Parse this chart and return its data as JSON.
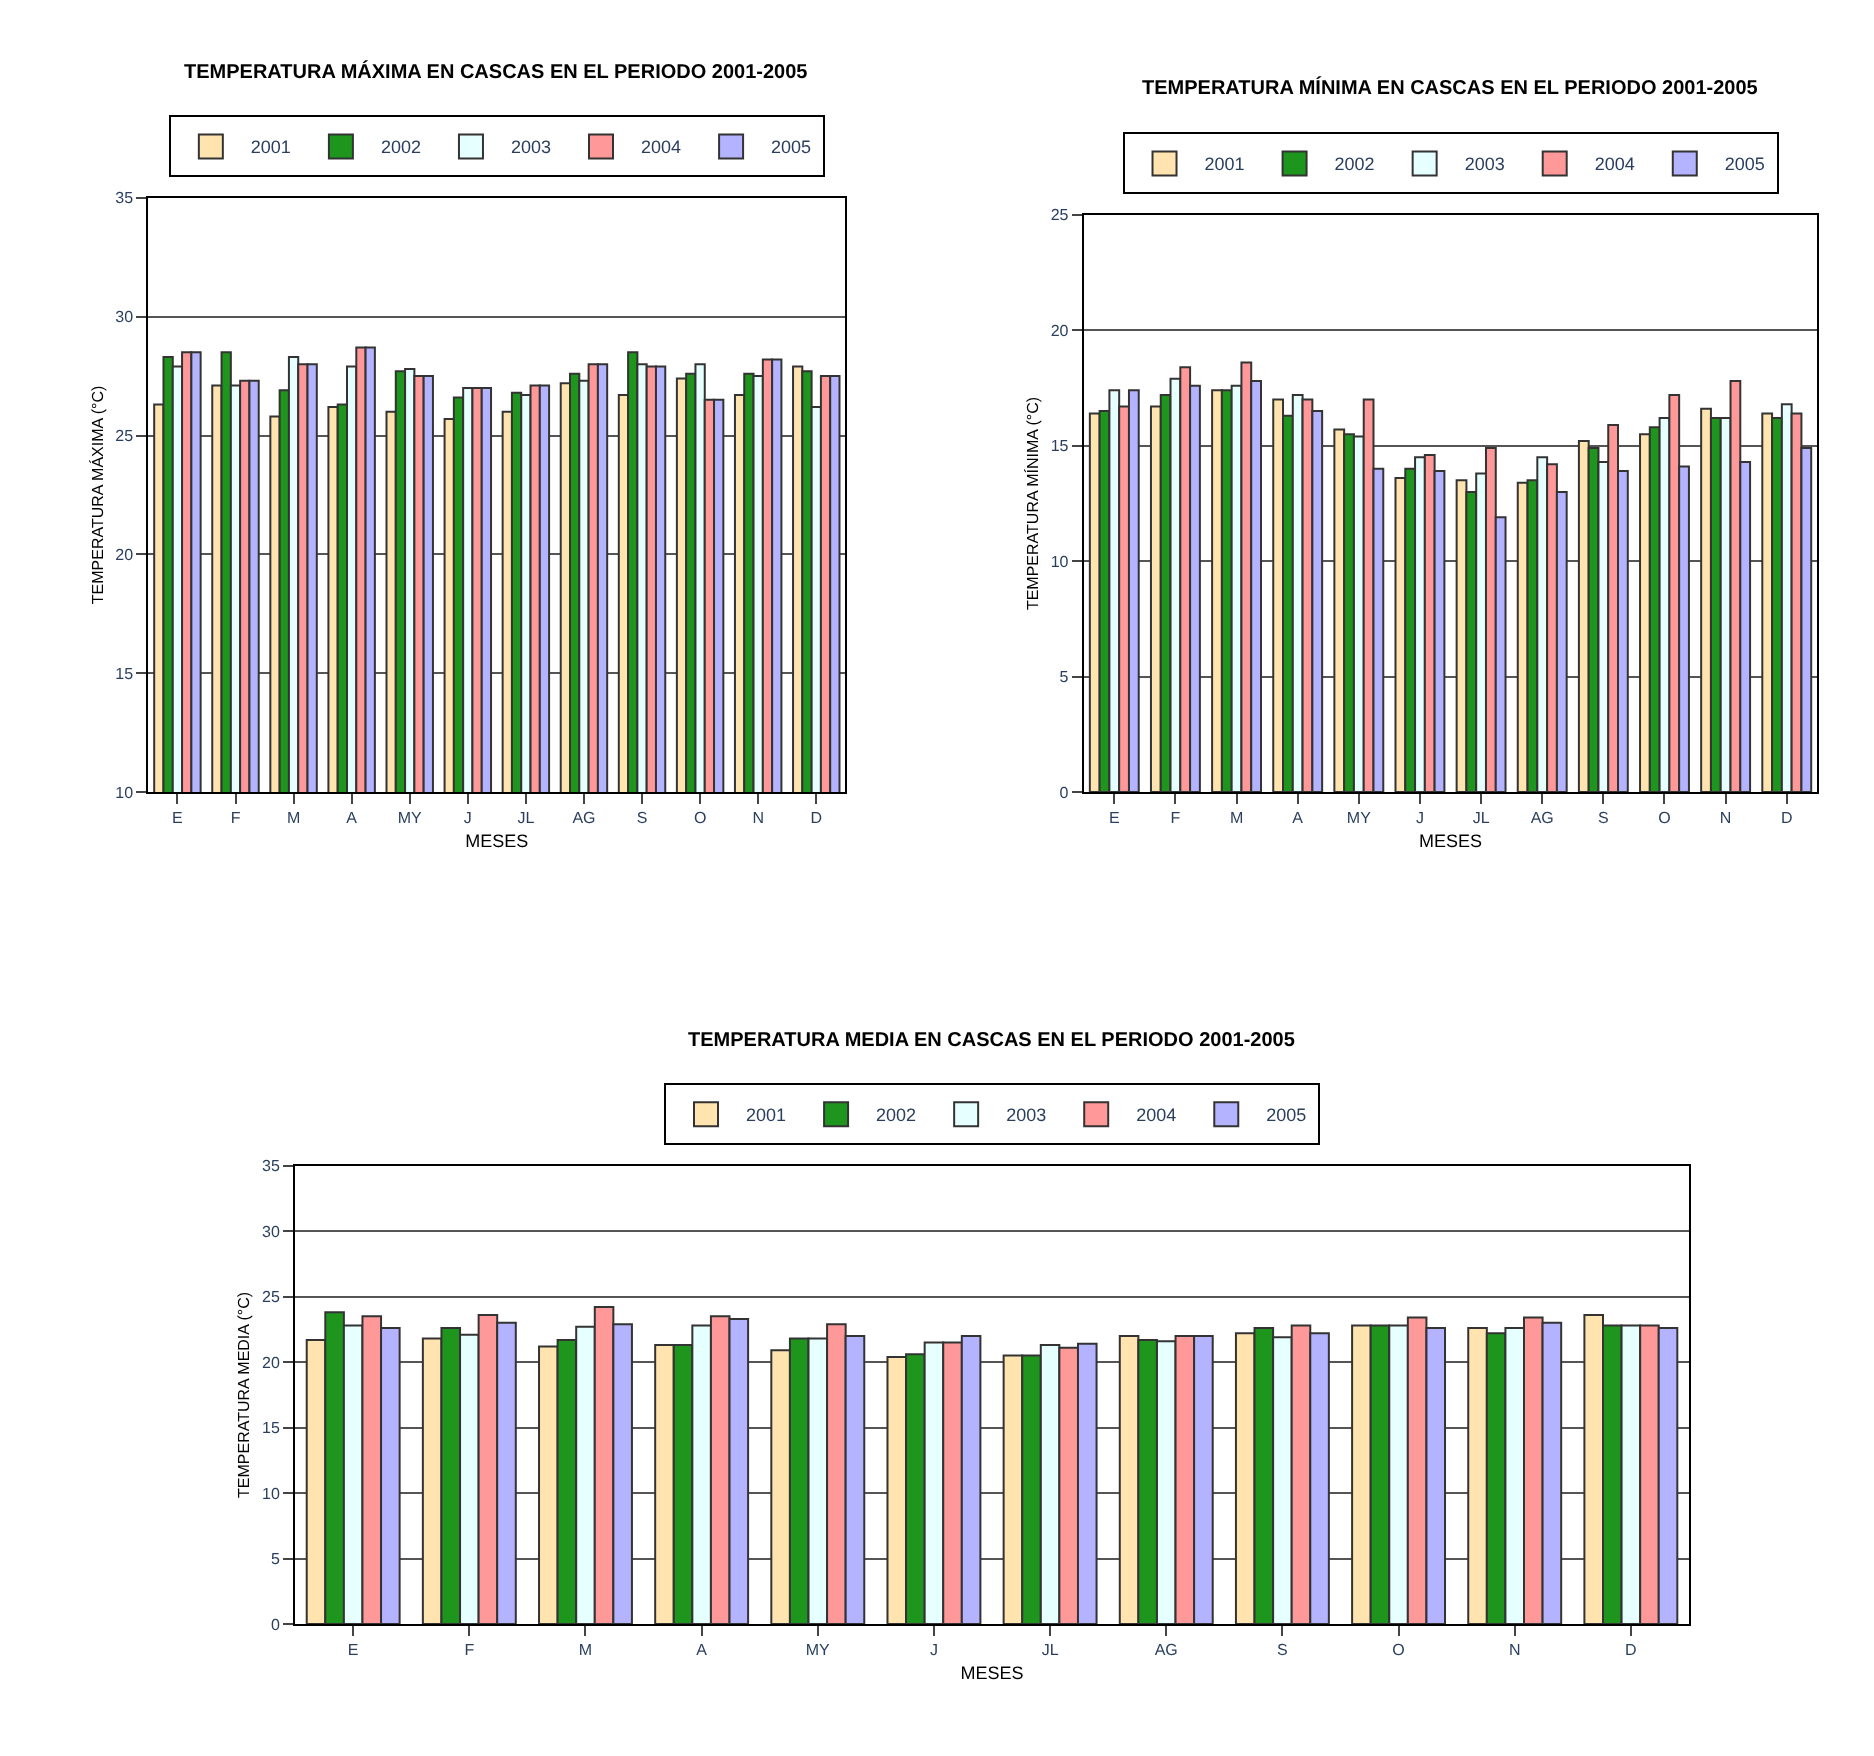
{
  "chart_data": [
    {
      "type": "bar",
      "title": "TEMPERATURA MÁXIMA EN CASCAS EN EL PERIODO 2001-2005",
      "xlabel": "MESES",
      "ylabel": "TEMPERATURA MÁXIMA (°C)",
      "categories": [
        "E",
        "F",
        "M",
        "A",
        "MY",
        "J",
        "JL",
        "AG",
        "S",
        "O",
        "N",
        "D"
      ],
      "ylim": [
        10,
        35
      ],
      "yticks": [
        10,
        15,
        20,
        25,
        30,
        35
      ],
      "grid": "y",
      "legend": "top",
      "series": [
        {
          "name": "2001",
          "color": "#ffe4b0",
          "values": [
            26.3,
            27.1,
            25.8,
            26.2,
            26.0,
            25.7,
            26.0,
            27.2,
            26.7,
            27.4,
            26.7,
            27.9
          ]
        },
        {
          "name": "2002",
          "color": "#1e961e",
          "values": [
            28.3,
            28.5,
            26.9,
            26.3,
            27.7,
            26.6,
            26.8,
            27.6,
            28.5,
            27.6,
            27.6,
            27.7
          ]
        },
        {
          "name": "2003",
          "color": "#e6ffff",
          "values": [
            27.9,
            27.1,
            28.3,
            27.9,
            27.8,
            27.0,
            26.7,
            27.3,
            28.0,
            28.0,
            27.5,
            26.2
          ]
        },
        {
          "name": "2004",
          "color": "#ff9999",
          "values": [
            28.5,
            27.3,
            28.0,
            28.7,
            27.5,
            27.0,
            27.1,
            28.0,
            27.9,
            26.5,
            28.2,
            27.5
          ]
        },
        {
          "name": "2005",
          "color": "#b3b3ff",
          "values": [
            28.5,
            27.3,
            28.0,
            28.7,
            27.5,
            27.0,
            27.1,
            28.0,
            27.9,
            26.5,
            28.2,
            27.5
          ]
        }
      ]
    },
    {
      "type": "bar",
      "title": "TEMPERATURA MÍNIMA EN CASCAS EN EL PERIODO 2001-2005",
      "xlabel": "MESES",
      "ylabel": "TEMPERATURA MÍNIMA (°C)",
      "categories": [
        "E",
        "F",
        "M",
        "A",
        "MY",
        "J",
        "JL",
        "AG",
        "S",
        "O",
        "N",
        "D"
      ],
      "ylim": [
        0,
        25
      ],
      "yticks": [
        0,
        5,
        10,
        15,
        20,
        25
      ],
      "grid": "y",
      "legend": "top",
      "series": [
        {
          "name": "2001",
          "color": "#ffe4b0",
          "values": [
            16.4,
            16.7,
            17.4,
            17.0,
            15.7,
            13.6,
            13.5,
            13.4,
            15.2,
            15.5,
            16.6,
            16.4
          ]
        },
        {
          "name": "2002",
          "color": "#1e961e",
          "values": [
            16.5,
            17.2,
            17.4,
            16.3,
            15.5,
            14.0,
            13.0,
            13.5,
            14.9,
            15.8,
            16.2,
            16.2
          ]
        },
        {
          "name": "2003",
          "color": "#e6ffff",
          "values": [
            17.4,
            17.9,
            17.6,
            17.2,
            15.4,
            14.5,
            13.8,
            14.5,
            14.3,
            16.2,
            16.2,
            16.8
          ]
        },
        {
          "name": "2004",
          "color": "#ff9999",
          "values": [
            16.7,
            18.4,
            18.6,
            17.0,
            17.0,
            14.6,
            14.9,
            14.2,
            15.9,
            17.2,
            17.8,
            16.4
          ]
        },
        {
          "name": "2005",
          "color": "#b3b3ff",
          "values": [
            17.4,
            17.6,
            17.8,
            16.5,
            14.0,
            13.9,
            11.9,
            13.0,
            13.9,
            14.1,
            14.3,
            14.9
          ]
        }
      ]
    },
    {
      "type": "bar",
      "title": "TEMPERATURA MEDIA EN CASCAS EN EL PERIODO 2001-2005",
      "xlabel": "MESES",
      "ylabel": "TEMPERATURA MEDIA (°C)",
      "categories": [
        "E",
        "F",
        "M",
        "A",
        "MY",
        "J",
        "JL",
        "AG",
        "S",
        "O",
        "N",
        "D"
      ],
      "ylim": [
        0,
        35
      ],
      "yticks": [
        0,
        5,
        10,
        15,
        20,
        25,
        30,
        35
      ],
      "grid": "y",
      "legend": "top",
      "series": [
        {
          "name": "2001",
          "color": "#ffe4b0",
          "values": [
            21.7,
            21.8,
            21.2,
            21.3,
            20.9,
            20.4,
            20.5,
            22.0,
            22.2,
            22.8,
            22.6,
            23.6
          ]
        },
        {
          "name": "2002",
          "color": "#1e961e",
          "values": [
            23.8,
            22.6,
            21.7,
            21.3,
            21.8,
            20.6,
            20.5,
            21.7,
            22.6,
            22.8,
            22.2,
            22.8
          ]
        },
        {
          "name": "2003",
          "color": "#e6ffff",
          "values": [
            22.8,
            22.1,
            22.7,
            22.8,
            21.8,
            21.5,
            21.3,
            21.6,
            21.9,
            22.8,
            22.6,
            22.8
          ]
        },
        {
          "name": "2004",
          "color": "#ff9999",
          "values": [
            23.5,
            23.6,
            24.2,
            23.5,
            22.9,
            21.5,
            21.1,
            22.0,
            22.8,
            23.4,
            23.4,
            22.8
          ]
        },
        {
          "name": "2005",
          "color": "#b3b3ff",
          "values": [
            22.6,
            23.0,
            22.9,
            23.3,
            22.0,
            22.0,
            21.4,
            22.0,
            22.2,
            22.6,
            23.0,
            22.6
          ]
        }
      ]
    }
  ]
}
